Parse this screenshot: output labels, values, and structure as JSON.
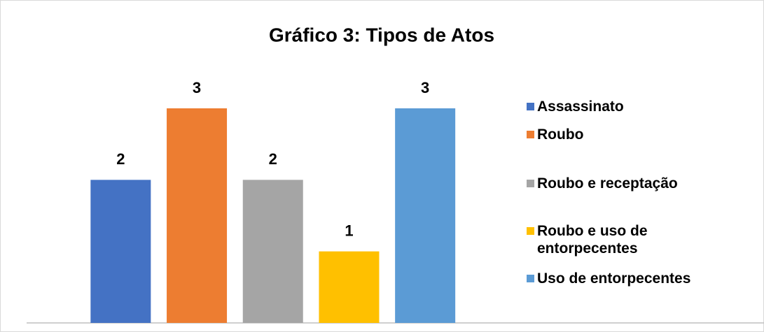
{
  "chart_data": {
    "type": "bar",
    "title": "Gráfico 3: Tipos de Atos",
    "series": [
      {
        "name": "Assassinato",
        "color": "#4472c4",
        "values": [
          2
        ]
      },
      {
        "name": "Roubo",
        "color": "#ed7d31",
        "values": [
          3
        ]
      },
      {
        "name": "Roubo e receptação",
        "color": "#a5a5a5",
        "values": [
          2
        ]
      },
      {
        "name": "Roubo e uso de entorpecentes",
        "color": "#ffc000",
        "values": [
          1
        ]
      },
      {
        "name": "Uso de entorpecentes",
        "color": "#5b9bd5",
        "values": [
          3
        ]
      }
    ],
    "legend": "right"
  }
}
